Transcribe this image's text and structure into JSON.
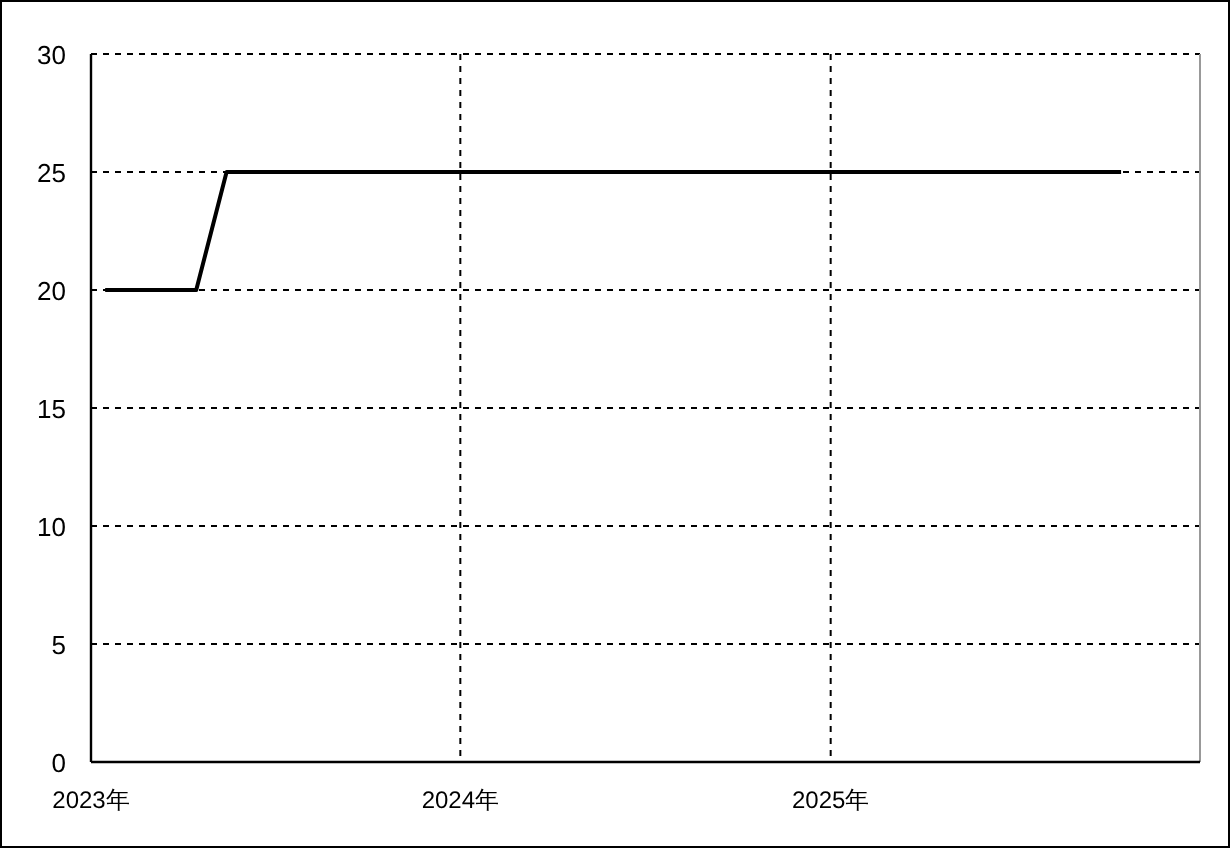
{
  "chart_data": {
    "type": "line",
    "x": [
      "2023-01-15",
      "2023-04-15",
      "2023-05-15",
      "2025-10-15"
    ],
    "values": [
      20,
      20,
      25,
      25
    ],
    "color": "#000000",
    "xlim": [
      "2023-01-01",
      "2026-01-01"
    ],
    "ylim": [
      0,
      30
    ],
    "xticks": [
      {
        "value": "2023-01-01",
        "label": "2023年"
      },
      {
        "value": "2024-01-01",
        "label": "2024年"
      },
      {
        "value": "2025-01-01",
        "label": "2025年"
      }
    ],
    "yticks": [
      0,
      5,
      10,
      15,
      20,
      25,
      30
    ],
    "grid": true
  }
}
